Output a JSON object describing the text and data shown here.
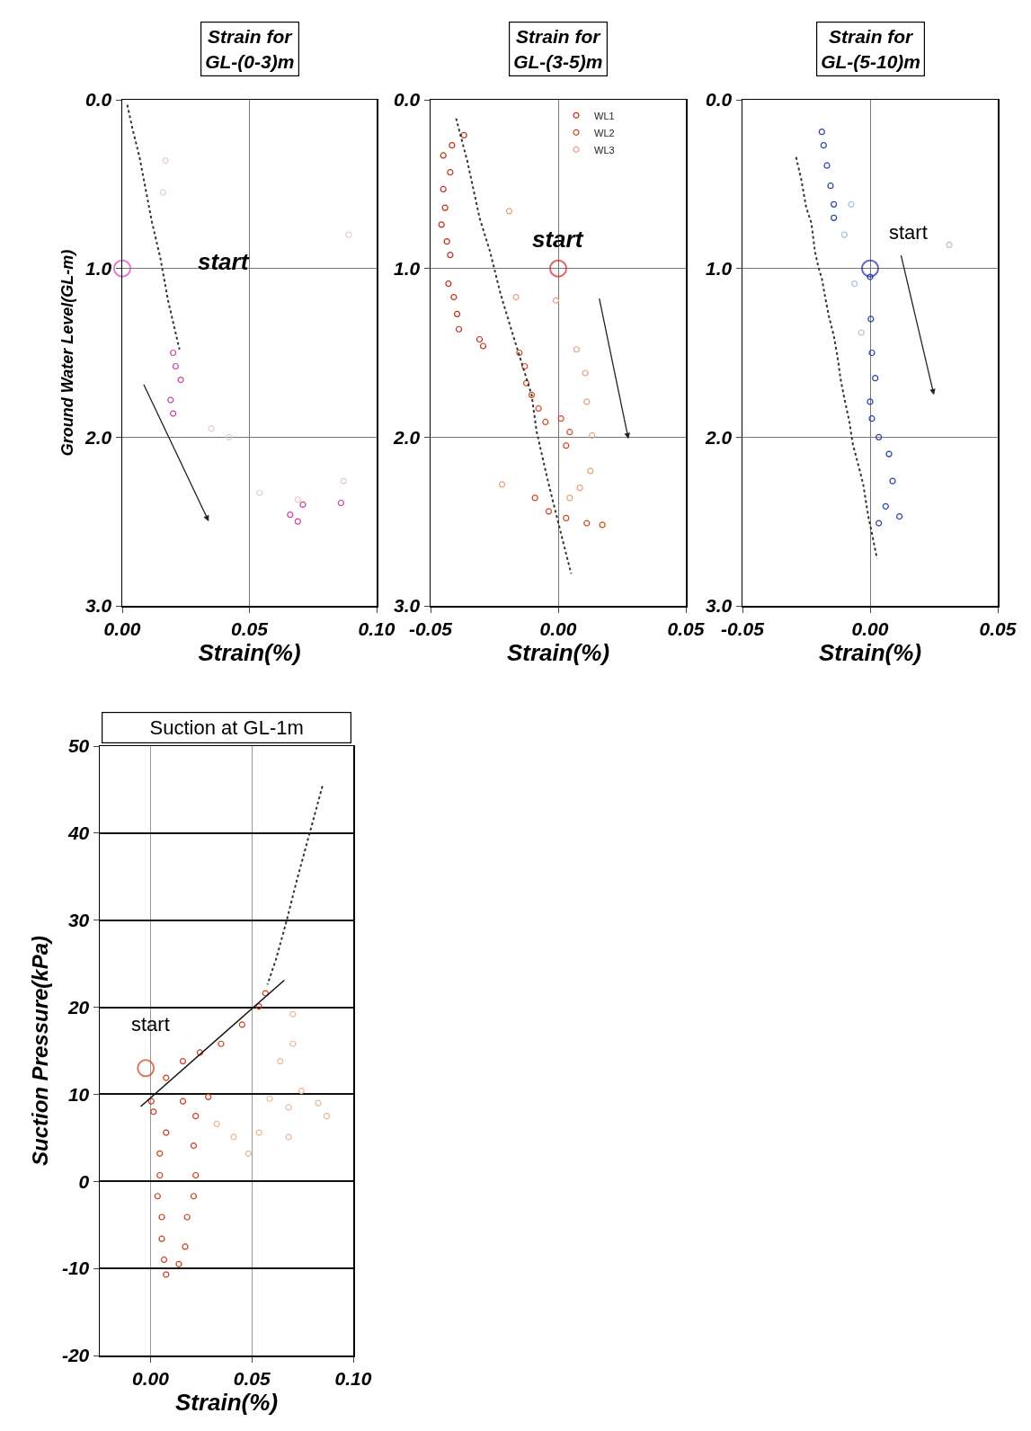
{
  "chart_data": [
    {
      "type": "scatter",
      "title": "Strain for\nGL-(0-3)m",
      "xlabel": "Strain(%)",
      "ylabel": "Ground Water Level(GL-m)",
      "annotations": [
        "start"
      ],
      "xlim": [
        0,
        0.1
      ],
      "ylim": [
        3,
        0
      ],
      "xticks": [
        {
          "value": 0,
          "label": "0.00"
        },
        {
          "value": 0.05,
          "label": "0.05"
        },
        {
          "value": 0.1,
          "label": "0.10"
        }
      ],
      "yticks": [
        {
          "value": 0,
          "label": "0.0"
        },
        {
          "value": 1,
          "label": "1.0"
        },
        {
          "value": 2,
          "label": "2.0"
        },
        {
          "value": 3,
          "label": "3.0"
        }
      ],
      "grid": true,
      "marker": "circle",
      "series": [
        {
          "color": "#d040a0",
          "x": [
            0.02,
            0.021,
            0.023,
            0.019,
            0.02,
            0.066,
            0.069,
            0.071,
            0.086
          ],
          "values": [
            1.5,
            1.58,
            1.66,
            1.78,
            1.86,
            2.46,
            2.5,
            2.4,
            2.39
          ]
        },
        {
          "color": "#e6c8dc",
          "x": [
            0.017,
            0.016,
            0.035,
            0.042,
            0.054,
            0.069,
            0.087,
            0.089
          ],
          "values": [
            0.36,
            0.55,
            1.95,
            2.0,
            2.33,
            2.37,
            2.26,
            0.8
          ]
        },
        {
          "type": "line",
          "color": "#333333",
          "line_style": "dotted",
          "marker": "none",
          "x": [
            0.002,
            0.004,
            0.0068,
            0.0116,
            0.015,
            0.018,
            0.0225
          ],
          "values": [
            0.03,
            0.17,
            0.34,
            0.72,
            0.94,
            1.19,
            1.48
          ]
        },
        {
          "type": "bubble",
          "color": "#d040c0",
          "x": [
            0
          ],
          "values": [
            1.0
          ],
          "sizes": [
            1
          ]
        }
      ]
    },
    {
      "type": "scatter",
      "title": "Strain for\nGL-(3-5)m",
      "xlabel": "Strain(%)",
      "annotations": [
        "start"
      ],
      "xlim": [
        -0.05,
        0.05
      ],
      "ylim": [
        3,
        0
      ],
      "xticks": [
        {
          "value": -0.05,
          "label": "-0.05"
        },
        {
          "value": 0,
          "label": "0.00"
        },
        {
          "value": 0.05,
          "label": "0.05"
        }
      ],
      "yticks": [
        {
          "value": 0,
          "label": "0.0"
        },
        {
          "value": 1,
          "label": "1.0"
        },
        {
          "value": 2,
          "label": "2.0"
        },
        {
          "value": 3,
          "label": "3.0"
        }
      ],
      "grid": true,
      "legend": "top",
      "marker": "circle",
      "series": [
        {
          "name": "WL1",
          "color": "#c0301c",
          "x": [
            -0.0369,
            -0.0416,
            -0.045,
            -0.0423,
            -0.045,
            -0.0443,
            -0.0457,
            -0.0436,
            -0.0423,
            -0.043,
            -0.0409,
            -0.0396,
            -0.0389,
            -0.0308,
            -0.0294
          ],
          "values": [
            0.21,
            0.27,
            0.33,
            0.43,
            0.53,
            0.64,
            0.74,
            0.84,
            0.92,
            1.09,
            1.17,
            1.27,
            1.36,
            1.42,
            1.46
          ]
        },
        {
          "name": "WL2",
          "color": "#d04a24",
          "x": [
            -0.0152,
            -0.0131,
            -0.0125,
            -0.0104,
            -0.0077,
            -0.005,
            0.0011,
            0.0045,
            0.0031,
            -0.0091,
            -0.0037,
            0.0031,
            0.0112,
            0.0173
          ],
          "values": [
            1.5,
            1.58,
            1.68,
            1.75,
            1.83,
            1.91,
            1.89,
            1.97,
            2.05,
            2.36,
            2.44,
            2.48,
            2.51,
            2.52
          ]
        },
        {
          "name": "WL3",
          "color": "#e8a080",
          "x": [
            0.0045,
            0.0085,
            0.0126,
            0.0133,
            0.0112,
            0.0106,
            0.0072,
            -0.0009,
            -0.022,
            -0.0192,
            -0.0165
          ],
          "values": [
            2.36,
            2.3,
            2.2,
            1.99,
            1.79,
            1.62,
            1.48,
            1.19,
            2.28,
            0.66,
            1.17
          ]
        },
        {
          "type": "line",
          "color": "#333333",
          "line_style": "dotted",
          "marker": "none",
          "x": [
            -0.04,
            -0.0355,
            -0.0308,
            -0.0267,
            -0.0226,
            -0.0172,
            -0.0104,
            -0.0084,
            -0.0057,
            -0.0037,
            0.0024,
            0.0051
          ],
          "values": [
            0.11,
            0.37,
            0.7,
            0.9,
            1.15,
            1.42,
            1.75,
            1.97,
            2.15,
            2.28,
            2.65,
            2.81
          ]
        },
        {
          "type": "bubble",
          "color": "#e02020",
          "x": [
            0
          ],
          "values": [
            1.0
          ],
          "sizes": [
            1
          ]
        }
      ]
    },
    {
      "type": "scatter",
      "title": "Strain for\nGL-(5-10)m",
      "xlabel": "Strain(%)",
      "annotations": [
        "start"
      ],
      "xlim": [
        -0.05,
        0.05
      ],
      "ylim": [
        3,
        0
      ],
      "xticks": [
        {
          "value": -0.05,
          "label": "-0.05"
        },
        {
          "value": 0,
          "label": "0.00"
        },
        {
          "value": 0.05,
          "label": "0.05"
        }
      ],
      "yticks": [
        {
          "value": 0,
          "label": "0.0"
        },
        {
          "value": 1,
          "label": "1.0"
        },
        {
          "value": 2,
          "label": "2.0"
        },
        {
          "value": 3,
          "label": "3.0"
        }
      ],
      "grid": true,
      "marker": "circle",
      "series": [
        {
          "color": "#2a44a0",
          "x": [
            -0.0189,
            -0.0182,
            -0.0169,
            -0.0155,
            -0.0142,
            -0.0142,
            0,
            0.0003,
            0.0007,
            0.002,
            0,
            0.0007,
            0.0034,
            0.0074,
            0.0088,
            0.0061,
            0.0034,
            0.0115
          ],
          "values": [
            0.19,
            0.27,
            0.39,
            0.51,
            0.62,
            0.7,
            1.05,
            1.3,
            1.5,
            1.65,
            1.79,
            1.89,
            2.0,
            2.1,
            2.26,
            2.41,
            2.51,
            2.47
          ]
        },
        {
          "color": "#a8c0e0",
          "x": [
            -0.0101,
            -0.0061,
            -0.0034,
            -0.0074,
            0.031
          ],
          "values": [
            0.8,
            1.09,
            1.38,
            0.62,
            0.86
          ]
        },
        {
          "type": "line",
          "color": "#333333",
          "line_style": "dotted",
          "marker": "none",
          "x": [
            -0.029,
            -0.027,
            -0.025,
            -0.023,
            -0.0216,
            -0.0203,
            -0.0189,
            -0.0176,
            -0.0162,
            -0.0142,
            -0.0128,
            -0.0115,
            -0.0101,
            -0.0081,
            -0.0068,
            -0.0047,
            -0.0027,
            -0.0007,
            0.0007,
            0.0027
          ],
          "values": [
            0.34,
            0.47,
            0.64,
            0.73,
            0.9,
            0.99,
            1.06,
            1.17,
            1.28,
            1.4,
            1.52,
            1.66,
            1.77,
            1.91,
            2.04,
            2.16,
            2.28,
            2.47,
            2.57,
            2.72
          ]
        },
        {
          "type": "bubble",
          "color": "#1a2a9a",
          "x": [
            0
          ],
          "values": [
            1.0
          ],
          "sizes": [
            1
          ]
        }
      ]
    },
    {
      "type": "scatter",
      "title": "Suction at GL-1m",
      "xlabel": "Strain(%)",
      "ylabel": "Suction Pressure(kPa)",
      "annotations": [
        "start"
      ],
      "xlim": [
        -0.025,
        0.1
      ],
      "ylim": [
        -20,
        50
      ],
      "xticks": [
        {
          "value": 0,
          "label": "0.00"
        },
        {
          "value": 0.05,
          "label": "0.05"
        },
        {
          "value": 0.1,
          "label": "0.10"
        }
      ],
      "yticks": [
        -20,
        -10,
        0,
        10,
        20,
        30,
        40,
        50
      ],
      "grid": true,
      "marker": "circle",
      "series": [
        {
          "color": "#c8401e",
          "x": [
            0.0004,
            0.0077,
            0.016,
            0.0244,
            0.0348,
            0.0452,
            0.0535,
            0.0567,
            0.0015,
            0.016,
            0.0077,
            0.0046,
            0.0046,
            0.0035,
            0.0056,
            0.0056,
            0.0067,
            0.0077,
            0.014,
            0.0171,
            0.0181,
            0.0213,
            0.0223,
            0.0213,
            0.0223,
            0.0285
          ],
          "values": [
            9.2,
            11.9,
            13.8,
            14.8,
            15.8,
            18.0,
            20.1,
            21.6,
            8.0,
            9.2,
            5.6,
            3.2,
            0.7,
            -1.7,
            -4.1,
            -6.6,
            -9.0,
            -10.7,
            -9.5,
            -7.5,
            -4.1,
            -1.7,
            0.7,
            4.1,
            7.5,
            9.7
          ]
        },
        {
          "color": "#e8b898",
          "x": [
            0.0327,
            0.041,
            0.0483,
            0.0535,
            0.0588,
            0.0681,
            0.0681,
            0.064,
            0.0702,
            0.0702,
            0.0744,
            0.0827,
            0.0869
          ],
          "values": [
            6.6,
            5.1,
            3.2,
            5.6,
            9.5,
            8.5,
            5.1,
            13.8,
            15.8,
            19.2,
            10.4,
            9.0,
            7.5
          ]
        },
        {
          "type": "line",
          "color": "#333333",
          "line_style": "dotted",
          "marker": "none",
          "x": [
            0.0848,
            0.0785,
            0.0723,
            0.0671,
            0.0619,
            0.0577
          ],
          "values": [
            45.4,
            40.0,
            34.7,
            29.9,
            25.5,
            22.6
          ]
        },
        {
          "type": "line",
          "color": "#111111",
          "line_style": "solid",
          "marker": "none",
          "x": [
            -0.0048,
            0.066
          ],
          "values": [
            8.6,
            23.1
          ]
        },
        {
          "type": "bubble",
          "color": "#d04020",
          "x": [
            -0.0023
          ],
          "values": [
            13.0
          ],
          "sizes": [
            1
          ]
        }
      ]
    }
  ]
}
